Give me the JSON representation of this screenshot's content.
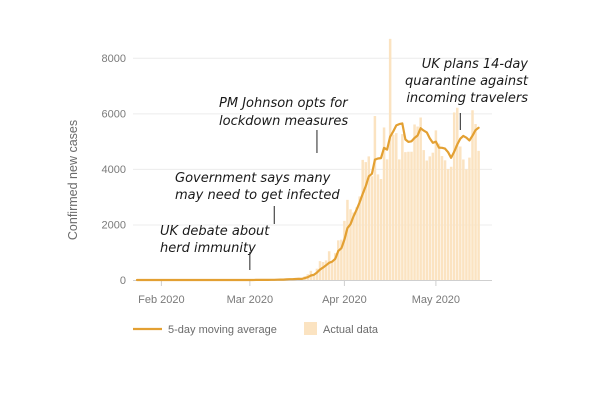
{
  "chart_data": {
    "type": "bar",
    "ylabel": "Confirmed new cases",
    "ylim": [
      0,
      9000
    ],
    "yticks": [
      0,
      2000,
      4000,
      6000,
      8000
    ],
    "xticks": [
      "Feb 2020",
      "Mar 2020",
      "Apr 2020",
      "May 2020"
    ],
    "x_start": "2020-01-24",
    "grid": "horizontal",
    "legend_position": "bottom-left",
    "colors": {
      "line": "#e3a032",
      "bars": "#fbe3c1"
    },
    "series": [
      {
        "name": "Actual data",
        "type": "bar",
        "values": [
          0,
          0,
          0,
          0,
          0,
          0,
          0,
          0,
          2,
          0,
          0,
          0,
          0,
          0,
          0,
          0,
          1,
          0,
          0,
          1,
          0,
          0,
          0,
          0,
          0,
          0,
          0,
          0,
          0,
          0,
          0,
          0,
          0,
          0,
          0,
          0,
          3,
          0,
          5,
          3,
          0,
          2,
          7,
          10,
          13,
          4,
          12,
          36,
          12,
          46,
          33,
          48,
          52,
          83,
          47,
          134,
          208,
          330,
          172,
          407,
          680,
          647,
          706,
          1035,
          665,
          967,
          1427,
          1452,
          2129,
          2885,
          2546,
          2433,
          2619,
          3009,
          4324,
          4244,
          4450,
          3735,
          5903,
          3802,
          3634,
          5491,
          4344,
          8681,
          5233,
          5288,
          4342,
          5252,
          4603,
          4617,
          4618,
          5599,
          5525,
          5850,
          4676,
          4301,
          4451,
          4583,
          5386,
          4913,
          4463,
          4309,
          3996,
          4076,
          6032,
          6201,
          4806,
          4339,
          3985,
          4406,
          6111,
          5614,
          4649
        ]
      },
      {
        "name": "5-day moving average",
        "type": "line",
        "values": [
          0,
          0,
          0,
          0,
          0,
          0,
          0,
          0,
          0.4,
          0.4,
          0.4,
          0.4,
          0.4,
          0,
          0,
          0,
          0.2,
          0.2,
          0.2,
          0.4,
          0.4,
          0.2,
          0.2,
          0.2,
          0,
          0,
          0,
          0,
          0,
          0,
          0,
          0,
          0,
          0,
          0,
          0,
          0.6,
          0.6,
          1.6,
          2.2,
          2.2,
          2.6,
          3.4,
          4.4,
          6.4,
          7.2,
          9.2,
          15,
          15.4,
          22,
          27.8,
          30.2,
          37.4,
          43.4,
          41.4,
          69,
          99.8,
          160.4,
          187.2,
          266.8,
          375,
          447,
          529,
          621,
          663,
          765,
          1047,
          1145,
          1448,
          1866,
          2008,
          2289,
          2532,
          2792,
          3100,
          3386,
          3732,
          3822,
          4331,
          4373,
          4390,
          4757,
          4695,
          5155,
          5346,
          5566,
          5612,
          5637,
          5058,
          4973,
          4995,
          5117,
          5201,
          5466,
          5378,
          5314,
          5097,
          4938,
          4981,
          4766,
          4759,
          4732,
          4601,
          4400,
          4617,
          4881,
          5087,
          5186,
          5124,
          5022,
          5195,
          5395,
          5480
        ]
      }
    ],
    "annotations": [
      {
        "lines": [
          "UK debate about",
          "herd immunity"
        ],
        "date": "2020-03-01"
      },
      {
        "lines": [
          "Government says many",
          "may need to get infected"
        ],
        "date": "2020-03-09"
      },
      {
        "lines": [
          "PM Johnson opts for",
          "lockdown measures"
        ],
        "date": "2020-03-23"
      },
      {
        "lines": [
          "UK plans 14-day",
          "quarantine against",
          "incoming travelers"
        ],
        "date": "2020-05-09"
      }
    ]
  }
}
